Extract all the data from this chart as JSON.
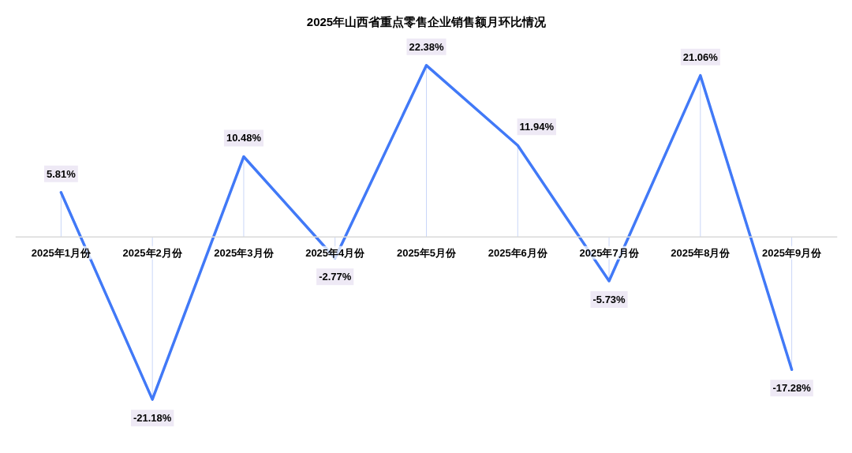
{
  "chart_data": {
    "type": "line",
    "title": "2025年山西省重点零售企业销售额月环比情况",
    "categories": [
      "2025年1月份",
      "2025年2月份",
      "2025年3月份",
      "2025年4月份",
      "2025年5月份",
      "2025年6月份",
      "2025年7月份",
      "2025年8月份",
      "2025年9月份"
    ],
    "series": [
      {
        "color": "#4179f7",
        "values": [
          5.81,
          -21.18,
          10.48,
          -2.77,
          22.38,
          11.94,
          -5.73,
          21.06,
          -17.28
        ],
        "value_labels": [
          "5.81%",
          "-21.18%",
          "10.48%",
          "-2.77%",
          "22.38%",
          "11.94%",
          "-5.73%",
          "21.06%",
          "-17.28%"
        ]
      }
    ],
    "tick_labels": "x",
    "grid": false
  }
}
